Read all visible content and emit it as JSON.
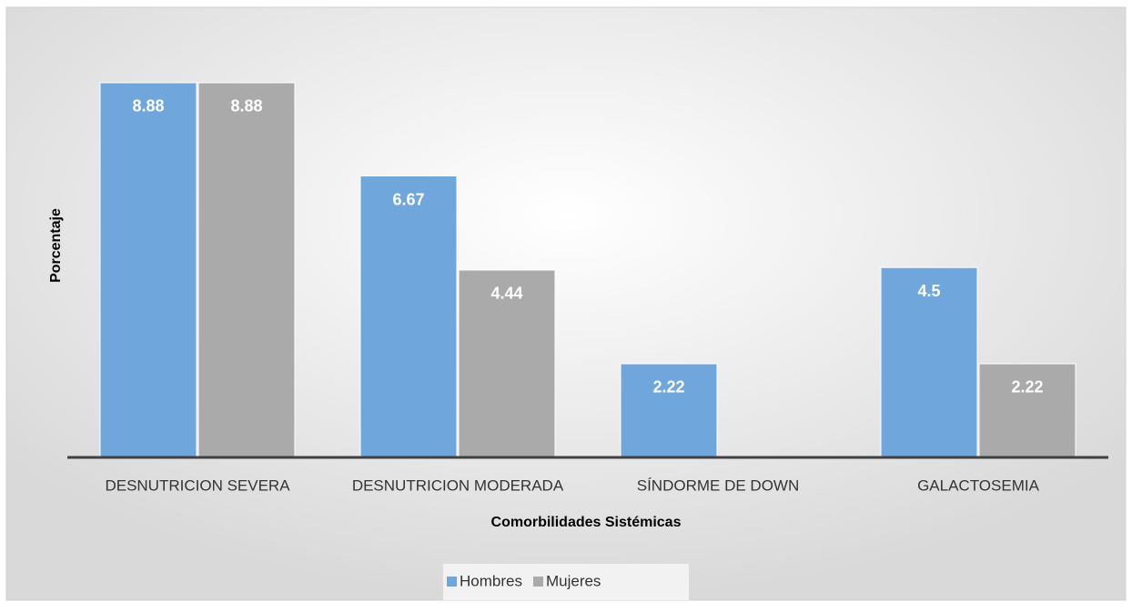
{
  "chart_data": {
    "type": "bar",
    "categories": [
      "DESNUTRICION SEVERA",
      "DESNUTRICION MODERADA",
      "SÍNDORME DE DOWN",
      "GALACTOSEMIA"
    ],
    "series": [
      {
        "name": "Hombres",
        "color": "#6fa6db",
        "values": [
          8.88,
          6.67,
          2.22,
          4.5
        ]
      },
      {
        "name": "Mujeres",
        "color": "#aaaaaa",
        "values": [
          8.88,
          4.44,
          null,
          2.22
        ]
      }
    ],
    "xlabel": "Comorbilidades Sistémicas",
    "ylabel": "Porcentaje",
    "ylim": [
      0,
      10
    ],
    "legend": "bottom"
  }
}
